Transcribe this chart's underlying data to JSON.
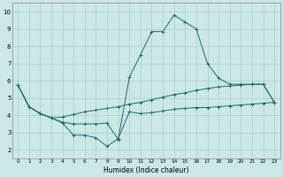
{
  "xlabel": "Humidex (Indice chaleur)",
  "xlim": [
    -0.5,
    23.5
  ],
  "ylim": [
    1.5,
    10.5
  ],
  "bg_color": "#cce8e4",
  "grid_color": "#aaceca",
  "line_color": "#1a6b6b",
  "line1_x": [
    0,
    1,
    2,
    3,
    4,
    5,
    6,
    7,
    8,
    9,
    10,
    11,
    12,
    13,
    14,
    15,
    16,
    17,
    18,
    19,
    20,
    21,
    22,
    23
  ],
  "line1_y": [
    5.75,
    4.5,
    4.1,
    3.85,
    3.55,
    2.85,
    2.85,
    2.7,
    2.2,
    2.65,
    4.2,
    4.1,
    4.15,
    4.25,
    4.35,
    4.4,
    4.45,
    4.45,
    4.5,
    4.55,
    4.6,
    4.65,
    4.7,
    4.75
  ],
  "line2_x": [
    0,
    1,
    2,
    3,
    4,
    5,
    6,
    7,
    8,
    9,
    10,
    11,
    12,
    13,
    14,
    15,
    16,
    17,
    18,
    19,
    20,
    21,
    22,
    23
  ],
  "line2_y": [
    5.75,
    4.5,
    4.1,
    3.85,
    3.9,
    4.05,
    4.2,
    4.3,
    4.4,
    4.5,
    4.65,
    4.75,
    4.9,
    5.05,
    5.2,
    5.3,
    5.45,
    5.55,
    5.65,
    5.7,
    5.75,
    5.8,
    5.8,
    4.75
  ],
  "line3_x": [
    0,
    1,
    2,
    3,
    4,
    5,
    6,
    7,
    8,
    9,
    10,
    11,
    12,
    13,
    14,
    15,
    16,
    17,
    18,
    19,
    20,
    21,
    22,
    23
  ],
  "line3_y": [
    5.75,
    4.5,
    4.1,
    3.85,
    3.6,
    3.5,
    3.5,
    3.5,
    3.55,
    2.6,
    6.2,
    7.5,
    8.85,
    8.85,
    9.8,
    9.4,
    9.0,
    7.0,
    6.15,
    5.8,
    5.8,
    5.8,
    5.8,
    4.75
  ],
  "xticks": [
    0,
    1,
    2,
    3,
    4,
    5,
    6,
    7,
    8,
    9,
    10,
    11,
    12,
    13,
    14,
    15,
    16,
    17,
    18,
    19,
    20,
    21,
    22,
    23
  ],
  "yticks": [
    2,
    3,
    4,
    5,
    6,
    7,
    8,
    9,
    10
  ],
  "xlabel_fontsize": 5.5,
  "tick_fontsize_x": 4.2,
  "tick_fontsize_y": 5.0
}
